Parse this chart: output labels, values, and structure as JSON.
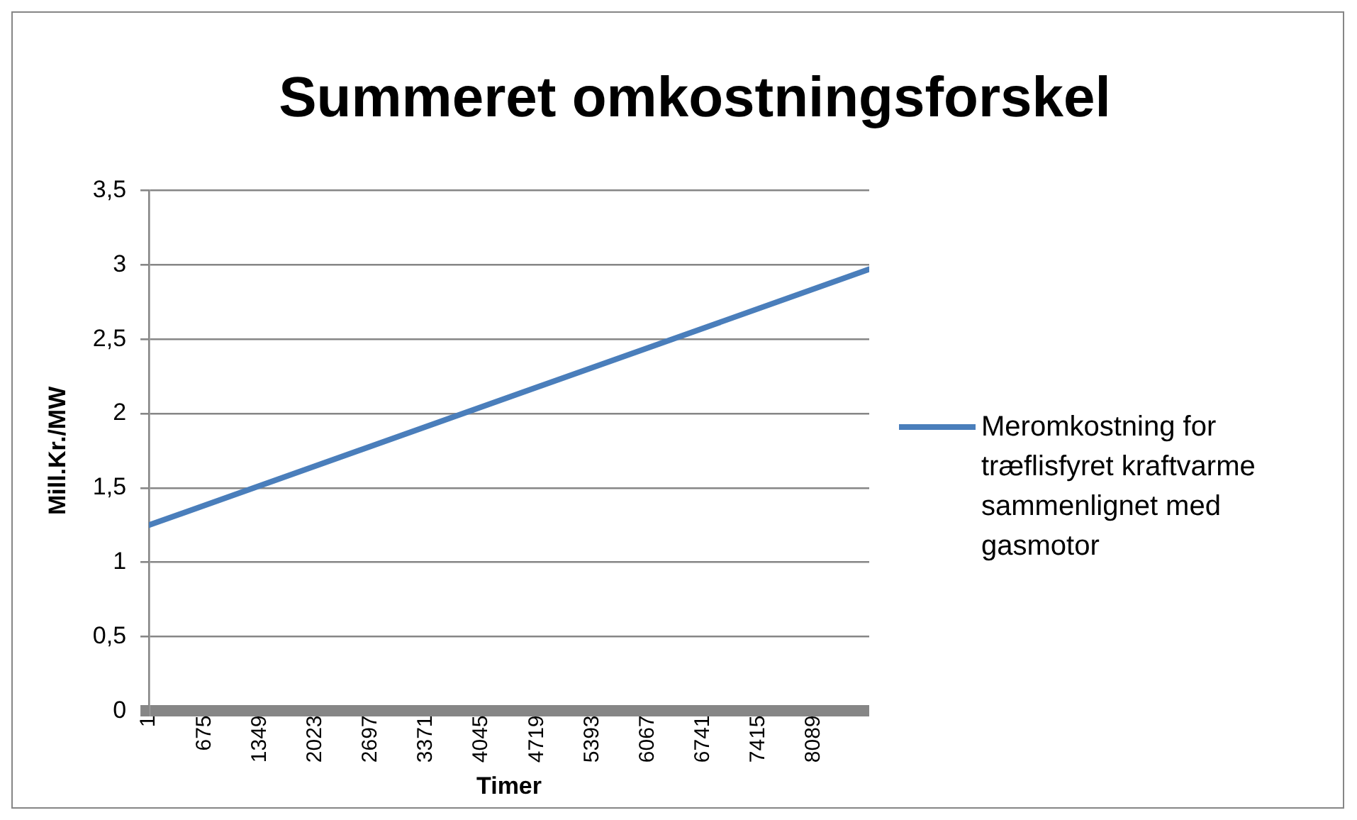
{
  "chart_data": {
    "type": "line",
    "title": "Summeret omkostningsforskel",
    "xlabel": "Timer",
    "ylabel": "Mill.Kr./MW",
    "x": [
      1,
      8760
    ],
    "series": [
      {
        "name": "Meromkostning for træflisfyret kraftvarme sammenlignet med gasmotor",
        "color": "#4a7ebb",
        "values": [
          1.25,
          2.97
        ]
      }
    ],
    "xlim": [
      1,
      8760
    ],
    "xticks": [
      1,
      675,
      1349,
      2023,
      2697,
      3371,
      4045,
      4719,
      5393,
      6067,
      6741,
      7415,
      8089
    ],
    "ylim": [
      0,
      3.5
    ],
    "yticks": [
      0,
      {
        "value": 0.5,
        "label": "0,5"
      },
      1,
      {
        "value": 1.5,
        "label": "1,5"
      },
      2,
      {
        "value": 2.5,
        "label": "2,5"
      },
      3,
      {
        "value": 3.5,
        "label": "3,5"
      }
    ],
    "grid": "y",
    "legend": "right",
    "marker": "none",
    "line_style": "solid"
  }
}
